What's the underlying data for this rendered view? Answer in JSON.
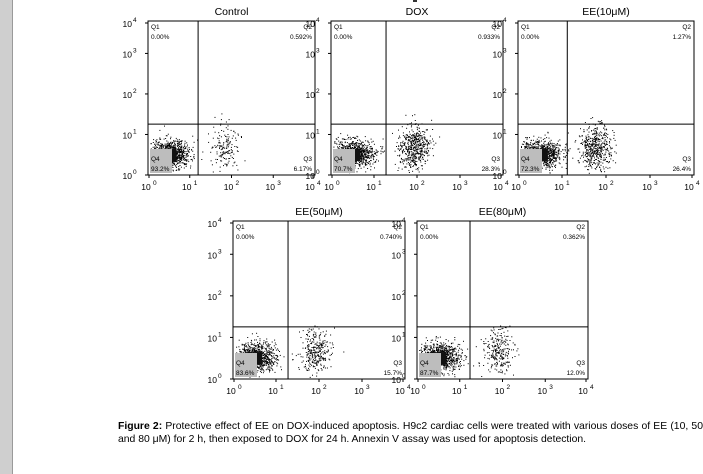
{
  "figure": {
    "caption_label": "Figure 2:",
    "caption_text": " Protective effect of EE on DOX-induced apoptosis. H9c2 cardiac cells were treated with various doses of EE (10, 50 and 80 μM) for 2 h, then exposed to DOX for 24 h. Annexin V assay was used for apoptosis detection."
  },
  "axis_ticks": [
    "10",
    "10",
    "10",
    "10",
    "10"
  ],
  "axis_exponents": [
    "0",
    "1",
    "2",
    "3",
    "4"
  ],
  "quadrant_names": [
    "Q1",
    "Q2",
    "Q3",
    "Q4"
  ],
  "panels": [
    {
      "title": "Control",
      "q1": "0.00%",
      "q2": "0.592%",
      "q3": "6.17%",
      "q4": "93.2%"
    },
    {
      "title": "DOX",
      "q1": "0.00%",
      "q2": "0.933%",
      "q3": "28.3%",
      "q4": "70.7%"
    },
    {
      "title": "EE(10μM)",
      "q1": "0.00%",
      "q2": "1.27%",
      "q3": "26.4%",
      "q4": "72.3%"
    },
    {
      "title": "EE(50μM)",
      "q1": "0.00%",
      "q2": "0.740%",
      "q3": "15.7%",
      "q4": "83.6%"
    },
    {
      "title": "EE(80μM)",
      "q1": "0.00%",
      "q2": "0.362%",
      "q3": "12.0%",
      "q4": "87.7%"
    }
  ],
  "chart_data": [
    {
      "type": "scatter",
      "title": "Control",
      "xscale": "log",
      "yscale": "log",
      "xlim": [
        1,
        10000
      ],
      "ylim": [
        1,
        10000
      ],
      "quadrants": {
        "Q1": 0.0,
        "Q2": 0.592,
        "Q3": 6.17,
        "Q4": 93.2
      }
    },
    {
      "type": "scatter",
      "title": "DOX",
      "xscale": "log",
      "yscale": "log",
      "xlim": [
        1,
        10000
      ],
      "ylim": [
        1,
        10000
      ],
      "quadrants": {
        "Q1": 0.0,
        "Q2": 0.933,
        "Q3": 28.3,
        "Q4": 70.7
      }
    },
    {
      "type": "scatter",
      "title": "EE(10μM)",
      "xscale": "log",
      "yscale": "log",
      "xlim": [
        1,
        10000
      ],
      "ylim": [
        1,
        10000
      ],
      "quadrants": {
        "Q1": 0.0,
        "Q2": 1.27,
        "Q3": 26.4,
        "Q4": 72.3
      }
    },
    {
      "type": "scatter",
      "title": "EE(50μM)",
      "xscale": "log",
      "yscale": "log",
      "xlim": [
        1,
        10000
      ],
      "ylim": [
        1,
        10000
      ],
      "quadrants": {
        "Q1": 0.0,
        "Q2": 0.74,
        "Q3": 15.7,
        "Q4": 83.6
      }
    },
    {
      "type": "scatter",
      "title": "EE(80μM)",
      "xscale": "log",
      "yscale": "log",
      "xlim": [
        1,
        10000
      ],
      "ylim": [
        1,
        10000
      ],
      "quadrants": {
        "Q1": 0.0,
        "Q2": 0.362,
        "Q3": 12.0,
        "Q4": 87.7
      }
    }
  ]
}
